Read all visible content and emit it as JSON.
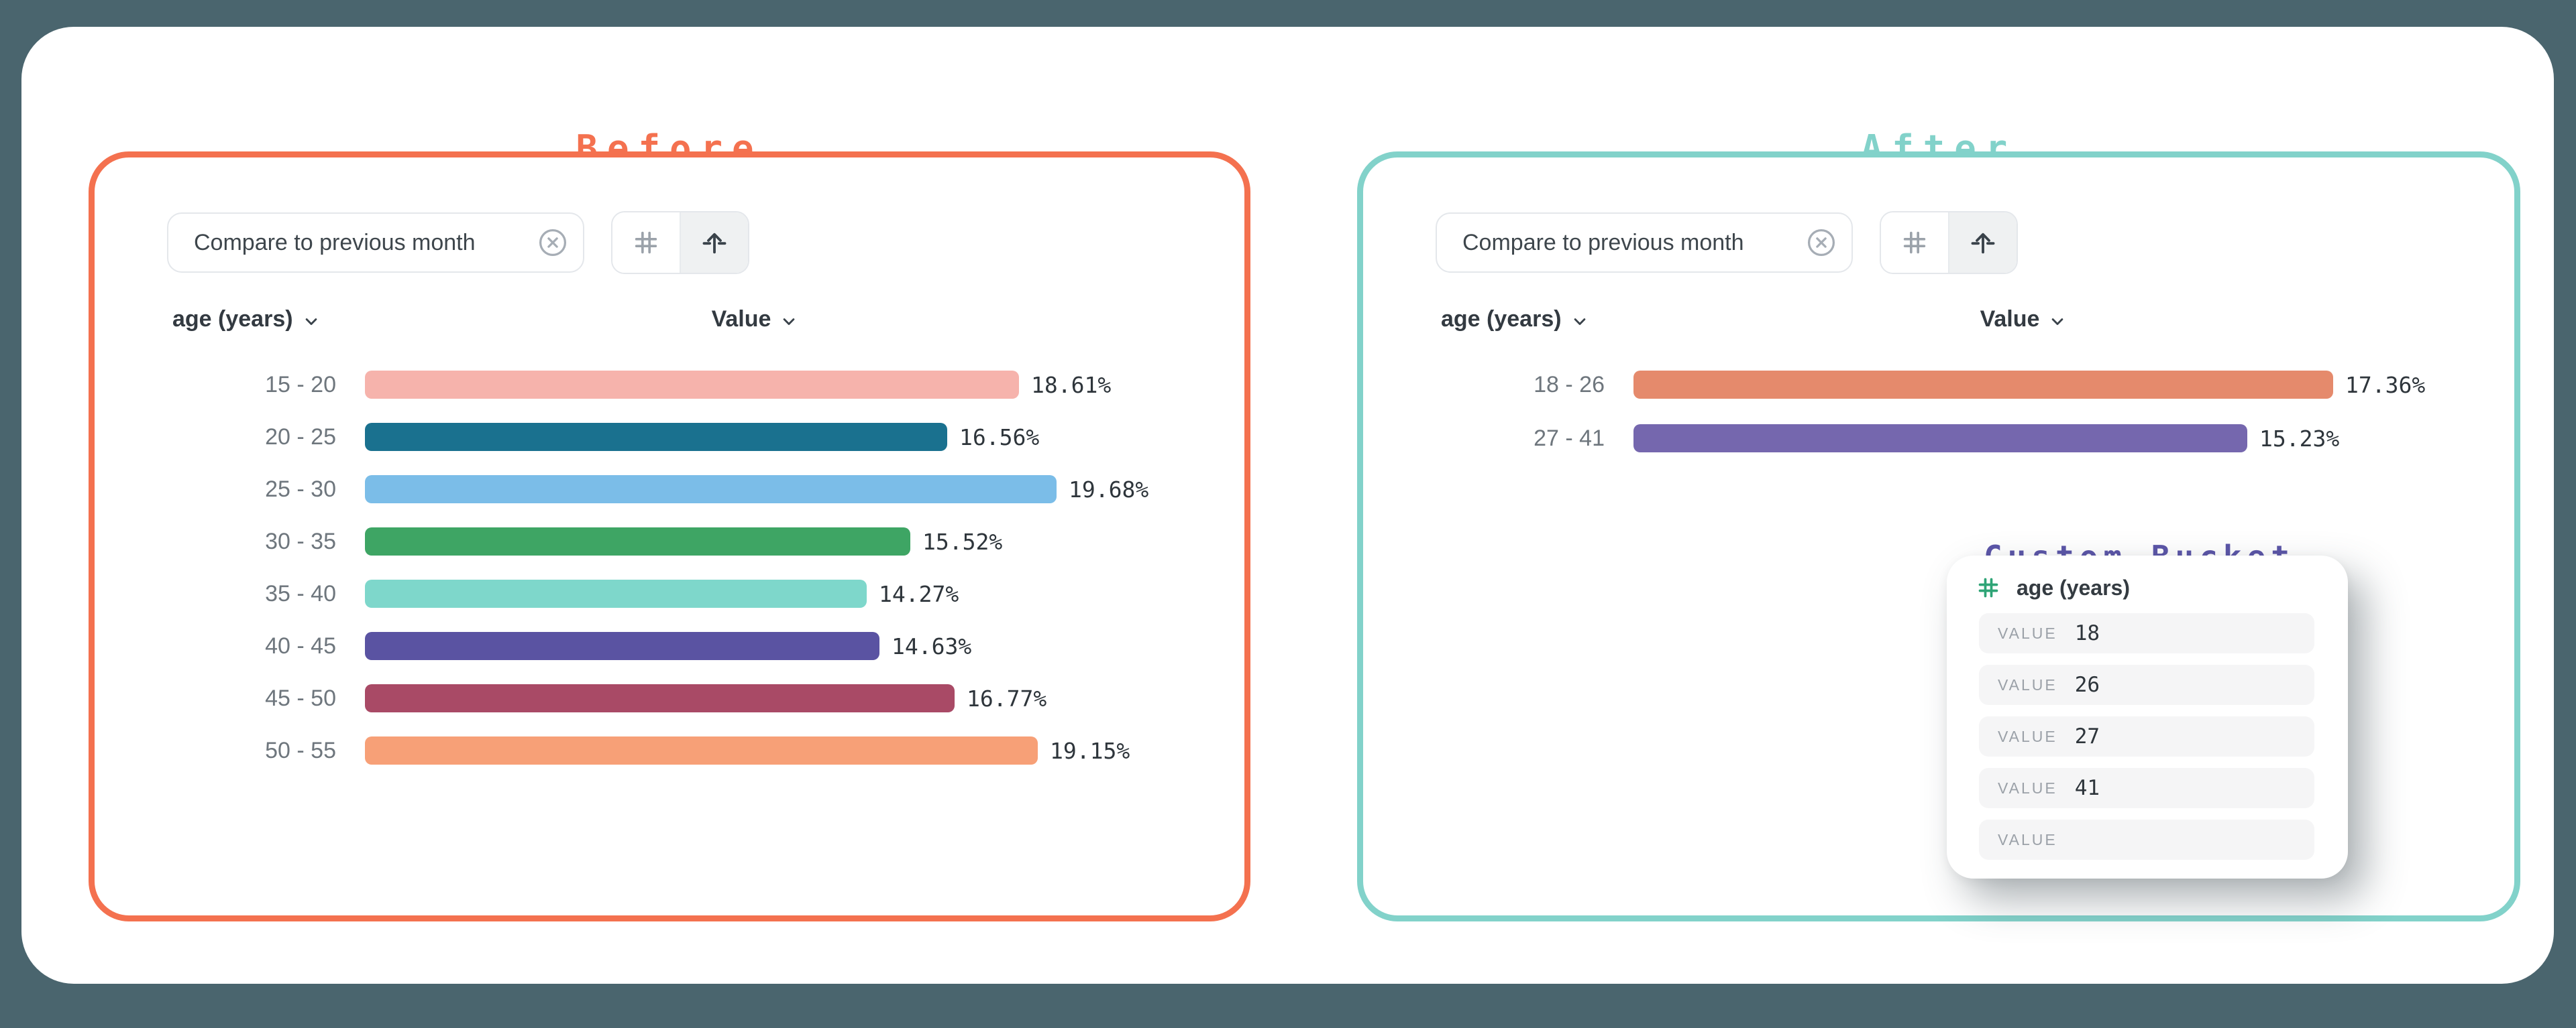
{
  "page": {
    "background": "#4A656E",
    "card_background": "#FFFFFF"
  },
  "before": {
    "title": "Before",
    "accent_color": "#F4714F",
    "toolbar": {
      "segment_label": "Compare to previous month",
      "close_icon": "circle-x-icon",
      "format_icon": "hash-icon",
      "sort_icon": "arrow-up-icon",
      "sort_selected": true
    },
    "columns": {
      "dimension": "age (years)",
      "measure": "Value"
    },
    "rows": [
      {
        "label": "15 - 20",
        "value": 18.61,
        "display": "18.61%",
        "color": "#F6B3AC"
      },
      {
        "label": "20 - 25",
        "value": 16.56,
        "display": "16.56%",
        "color": "#1A718F"
      },
      {
        "label": "25 - 30",
        "value": 19.68,
        "display": "19.68%",
        "color": "#7BBDE8"
      },
      {
        "label": "30 - 35",
        "value": 15.52,
        "display": "15.52%",
        "color": "#3EA564"
      },
      {
        "label": "35 - 40",
        "value": 14.27,
        "display": "14.27%",
        "color": "#7ED7CB"
      },
      {
        "label": "40 - 45",
        "value": 14.63,
        "display": "14.63%",
        "color": "#5A53A2"
      },
      {
        "label": "45 - 50",
        "value": 16.77,
        "display": "16.77%",
        "color": "#A94A66"
      },
      {
        "label": "50 - 55",
        "value": 19.15,
        "display": "19.15%",
        "color": "#F7A077"
      }
    ]
  },
  "after": {
    "title": "After",
    "accent_color": "#82D2CA",
    "toolbar": {
      "segment_label": "Compare to previous month",
      "close_icon": "circle-x-icon",
      "format_icon": "hash-icon",
      "sort_icon": "arrow-up-icon",
      "sort_selected": true
    },
    "columns": {
      "dimension": "age (years)",
      "measure": "Value"
    },
    "rows": [
      {
        "label": "18 - 26",
        "value": 17.36,
        "display": "17.36%",
        "color": "#E58A6C"
      },
      {
        "label": "27 - 41",
        "value": 15.23,
        "display": "15.23%",
        "color": "#7567AE"
      }
    ],
    "custom_bucket": {
      "title": "Custom Bucket",
      "title_color": "#5B55A8",
      "field": "age (years)",
      "field_icon": "hash-icon",
      "field_icon_color": "#2EA476",
      "value_label": "VALUE",
      "values": [
        "18",
        "26",
        "27",
        "41",
        ""
      ]
    }
  },
  "chart_data": [
    {
      "type": "bar",
      "orientation": "horizontal",
      "title": "Before",
      "categories": [
        "15 - 20",
        "20 - 25",
        "25 - 30",
        "30 - 35",
        "35 - 40",
        "40 - 45",
        "45 - 50",
        "50 - 55"
      ],
      "values": [
        18.61,
        16.56,
        19.68,
        15.52,
        14.27,
        14.63,
        16.77,
        19.15
      ],
      "unit": "%",
      "xlabel": "Value",
      "ylabel": "age (years)",
      "bar_colors": [
        "#F6B3AC",
        "#1A718F",
        "#7BBDE8",
        "#3EA564",
        "#7ED7CB",
        "#5A53A2",
        "#A94A66",
        "#F7A077"
      ],
      "data_labels": true,
      "grid": false,
      "legend": false
    },
    {
      "type": "bar",
      "orientation": "horizontal",
      "title": "After",
      "categories": [
        "18 - 26",
        "27 - 41"
      ],
      "values": [
        17.36,
        15.23
      ],
      "unit": "%",
      "xlabel": "Value",
      "ylabel": "age (years)",
      "bar_colors": [
        "#E58A6C",
        "#7567AE"
      ],
      "data_labels": true,
      "grid": false,
      "legend": false
    }
  ]
}
